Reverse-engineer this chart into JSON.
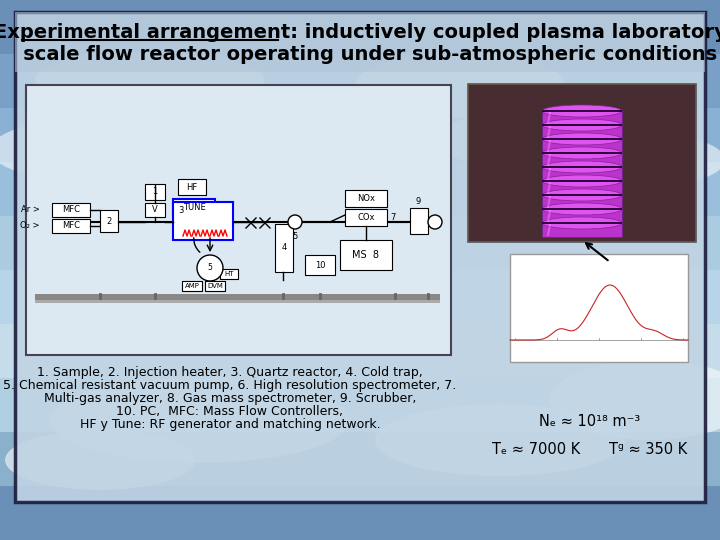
{
  "title_line1": "Experimental arrangement: inductively coupled plasma laboratory",
  "title_line2": "   scale flow reactor operating under sub-atmospheric conditions",
  "caption_lines": [
    "1. Sample, 2. Injection heater, 3. Quartz reactor, 4. Cold trap,",
    "5. Chemical resistant vacuum pump, 6. High resolution spectrometer, 7.",
    "Multi-gas analyzer, 8. Gas mass spectrometer, 9. Scrubber,",
    "10. PC,  MFC: Mass Flow Controllers,",
    "HF y Tune: RF generator and matching network."
  ],
  "ne_text": "Nₑ ≈ 10¹⁸ m⁻³",
  "te_text": "Tₑ ≈ 7000 K",
  "tg_text": "Tᵍ ≈ 350 K",
  "font_size_title": 14,
  "font_size_caption": 9,
  "font_size_params": 10
}
